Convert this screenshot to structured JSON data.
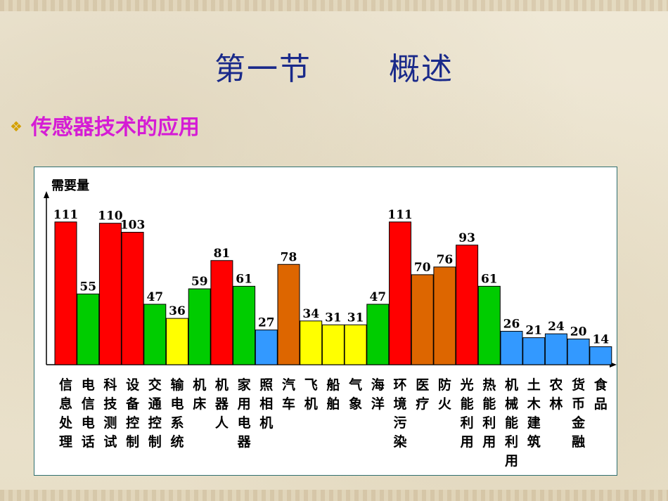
{
  "slide": {
    "title_part1": "第一节",
    "title_part2": "概述",
    "bullet": "❖",
    "subtitle": "传感器技术的应用"
  },
  "colors": {
    "red": "#ff0000",
    "green": "#00cc00",
    "yellow": "#ffff00",
    "blue": "#3399ff",
    "orange": "#dd6600",
    "title": "#1a2a8a",
    "subtitle": "#d51cd5"
  },
  "chart_data": {
    "type": "bar",
    "ylabel": "需要量",
    "ylim": [
      0,
      120
    ],
    "grid": false,
    "categories": [
      "信息处理",
      "电信电话",
      "科技测试",
      "设备控制",
      "交通控制",
      "输电系统",
      "机床",
      "机器人",
      "家用电器",
      "照相机",
      "汽车",
      "飞机",
      "船舶",
      "气象",
      "海洋",
      "环境污染",
      "医疗",
      "防火",
      "光能利用",
      "热能利用",
      "机械能利用",
      "土木建筑",
      "农林",
      "货币金融",
      "食品"
    ],
    "values": [
      111,
      55,
      110,
      103,
      47,
      36,
      59,
      81,
      61,
      27,
      78,
      34,
      31,
      31,
      47,
      111,
      70,
      76,
      93,
      61,
      26,
      21,
      24,
      20,
      14
    ],
    "bar_colors": [
      "red",
      "green",
      "red",
      "red",
      "green",
      "yellow",
      "green",
      "red",
      "green",
      "blue",
      "orange",
      "yellow",
      "yellow",
      "yellow",
      "green",
      "red",
      "orange",
      "orange",
      "red",
      "green",
      "blue",
      "blue",
      "blue",
      "blue",
      "blue"
    ]
  }
}
